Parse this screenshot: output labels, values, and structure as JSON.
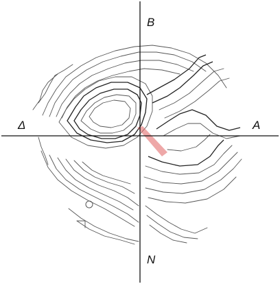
{
  "labels": {
    "top": "B",
    "left": "Δ",
    "right": "A",
    "bottom": "N"
  },
  "colors": {
    "contour": "#555555",
    "ridge": "#222222",
    "axis": "#111111",
    "highlight": "#e06060"
  },
  "icons": {
    "highlight": "red-highlight-band",
    "small_circle": "small-circle-marker"
  }
}
